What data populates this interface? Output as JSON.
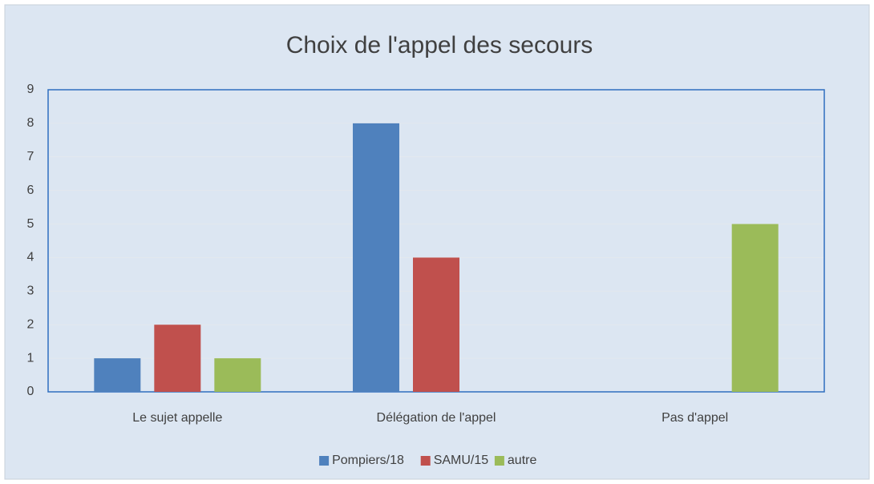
{
  "chart_data": {
    "type": "bar",
    "title": "Choix de l'appel des secours",
    "categories": [
      "Le sujet appelle",
      "Délégation de l'appel",
      "Pas d'appel"
    ],
    "series": [
      {
        "name": "Pompiers/18",
        "color": "#4f81bd",
        "values": [
          1,
          8,
          0
        ]
      },
      {
        "name": "SAMU/15",
        "color": "#c0504d",
        "values": [
          2,
          4,
          0
        ]
      },
      {
        "name": "autre",
        "color": "#9bbb59",
        "values": [
          1,
          0,
          5
        ]
      }
    ],
    "ylim": [
      0,
      9
    ],
    "yticks": [
      0,
      1,
      2,
      3,
      4,
      5,
      6,
      7,
      8,
      9
    ],
    "grid": true,
    "legend": "bottom"
  }
}
